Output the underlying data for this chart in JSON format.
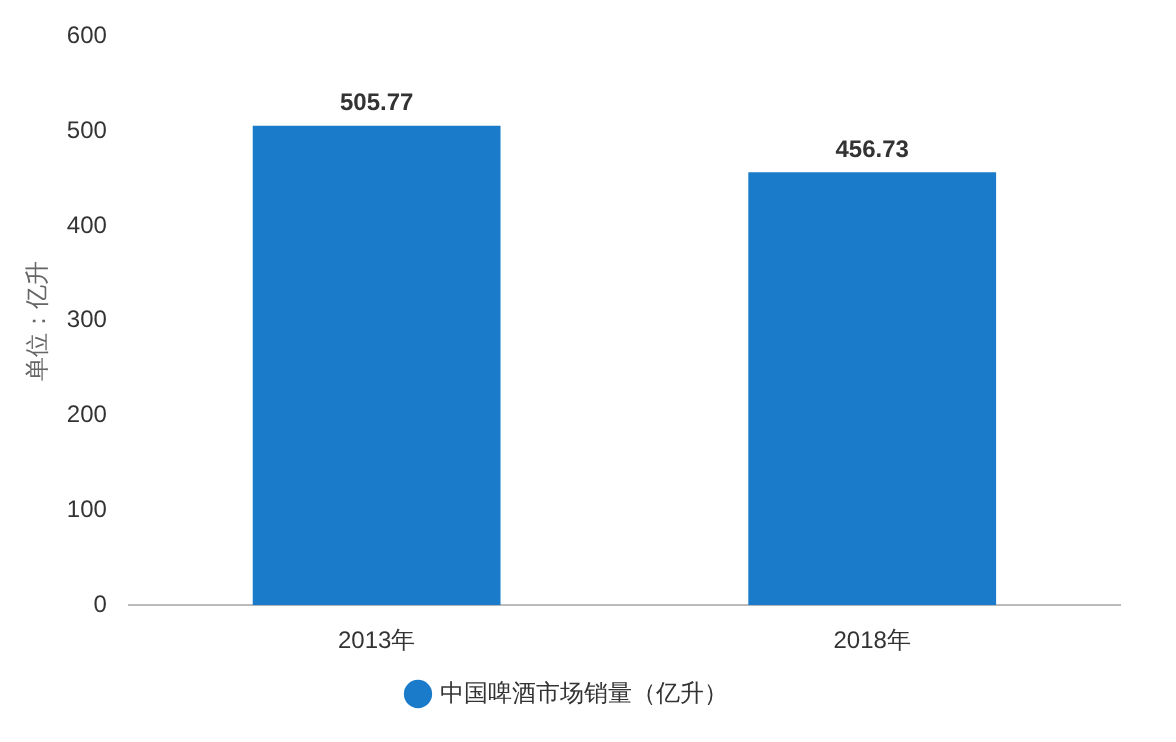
{
  "chart_data": {
    "type": "bar",
    "ylabel": "单位：亿升",
    "categories": [
      "2013年",
      "2018年"
    ],
    "series": [
      {
        "name": "中国啤酒市场销量（亿升）",
        "color": "#1a7bca",
        "values": [
          505.77,
          456.73
        ]
      }
    ],
    "ylim": [
      0,
      600
    ],
    "yticks": [
      0,
      100,
      200,
      300,
      400,
      500,
      600
    ],
    "data_labels": true,
    "legend": "bottom"
  }
}
